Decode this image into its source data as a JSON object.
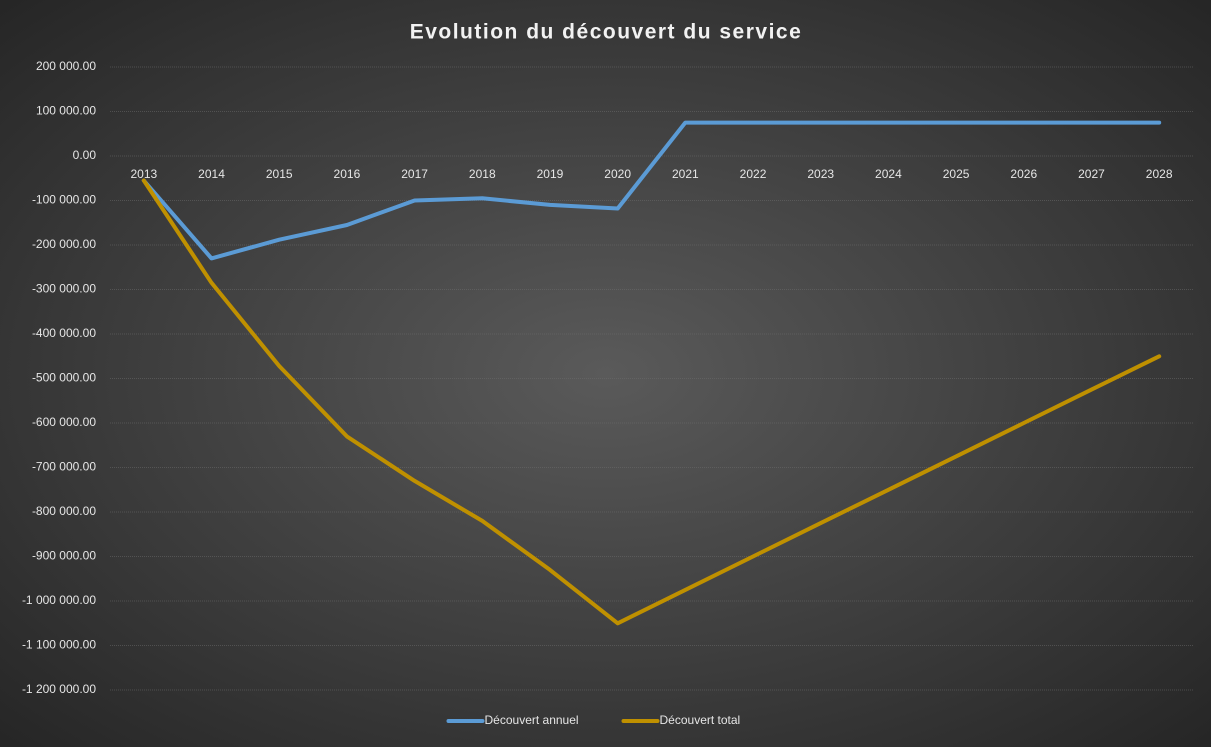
{
  "chart_data": {
    "type": "line",
    "title": "Evolution du découvert du service",
    "categories": [
      "2013",
      "2014",
      "2015",
      "2016",
      "2017",
      "2018",
      "2019",
      "2020",
      "2021",
      "2022",
      "2023",
      "2024",
      "2025",
      "2026",
      "2027",
      "2028"
    ],
    "series": [
      {
        "name": "Découvert annuel",
        "color": "#5b9bd5",
        "values": [
          -55000,
          -230000,
          -188000,
          -155000,
          -100000,
          -95000,
          -110000,
          -118000,
          75000,
          75000,
          75000,
          75000,
          75000,
          75000,
          75000,
          75000
        ]
      },
      {
        "name": "Découvert total",
        "color": "#bf9000",
        "values": [
          -55000,
          -285000,
          -472000,
          -630000,
          -730000,
          -820000,
          -930000,
          -1050000,
          -975000,
          -900000,
          -825000,
          -750000,
          -675000,
          -600000,
          -525000,
          -450000
        ]
      }
    ],
    "ylim": [
      -1200000,
      200000
    ],
    "yticks": [
      {
        "value": -1200000,
        "label": "-1 200 000.00"
      },
      {
        "value": -1100000,
        "label": "-1 100 000.00"
      },
      {
        "value": -1000000,
        "label": "-1 000 000.00"
      },
      {
        "value": -900000,
        "label": "-900 000.00"
      },
      {
        "value": -800000,
        "label": "-800 000.00"
      },
      {
        "value": -700000,
        "label": "-700 000.00"
      },
      {
        "value": -600000,
        "label": "-600 000.00"
      },
      {
        "value": -500000,
        "label": "-500 000.00"
      },
      {
        "value": -400000,
        "label": "-400 000.00"
      },
      {
        "value": -300000,
        "label": "-300 000.00"
      },
      {
        "value": -200000,
        "label": "-200 000.00"
      },
      {
        "value": -100000,
        "label": "-100 000.00"
      },
      {
        "value": 0,
        "label": "0.00"
      },
      {
        "value": 100000,
        "label": "100 000.00"
      },
      {
        "value": 200000,
        "label": "200 000.00"
      }
    ],
    "grid": true,
    "legend": "bottom"
  }
}
